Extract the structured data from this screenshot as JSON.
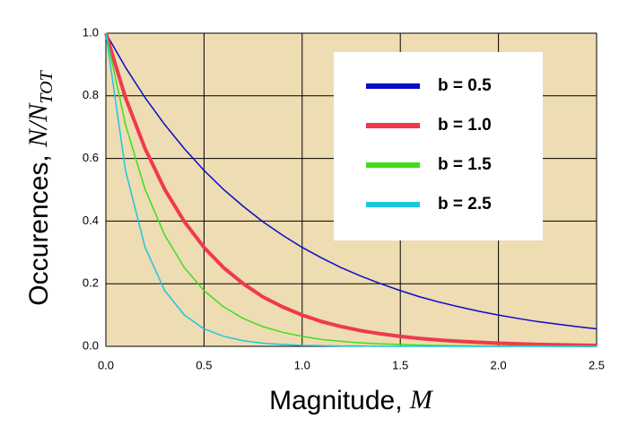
{
  "chart_data": {
    "type": "line",
    "xlabel": {
      "text": "Magnitude, ",
      "var": "M"
    },
    "ylabel": {
      "text": "Occurences, ",
      "var": "N/N",
      "sub": "TOT"
    },
    "x": [
      0,
      0.1,
      0.2,
      0.3,
      0.4,
      0.5,
      0.6,
      0.7,
      0.8,
      0.9,
      1.0,
      1.1,
      1.2,
      1.3,
      1.4,
      1.5,
      1.6,
      1.7,
      1.8,
      1.9,
      2.0,
      2.1,
      2.2,
      2.3,
      2.4,
      2.5
    ],
    "series": [
      {
        "name": "b = 0.5",
        "color": "#0b0bc8",
        "width": 1.5,
        "values": [
          1.0,
          0.891,
          0.794,
          0.708,
          0.631,
          0.562,
          0.501,
          0.447,
          0.398,
          0.355,
          0.316,
          0.282,
          0.251,
          0.224,
          0.2,
          0.178,
          0.158,
          0.141,
          0.126,
          0.112,
          0.1,
          0.089,
          0.079,
          0.071,
          0.063,
          0.056
        ]
      },
      {
        "name": "b = 1.0",
        "color": "#ef3a4c",
        "width": 4,
        "values": [
          1.0,
          0.794,
          0.631,
          0.501,
          0.398,
          0.316,
          0.251,
          0.2,
          0.158,
          0.126,
          0.1,
          0.079,
          0.063,
          0.05,
          0.04,
          0.032,
          0.025,
          0.02,
          0.016,
          0.013,
          0.01,
          0.008,
          0.006,
          0.005,
          0.004,
          0.003
        ]
      },
      {
        "name": "b = 1.5",
        "color": "#3fde1c",
        "width": 1.5,
        "values": [
          1.0,
          0.708,
          0.501,
          0.355,
          0.251,
          0.178,
          0.126,
          0.089,
          0.063,
          0.045,
          0.032,
          0.022,
          0.016,
          0.011,
          0.008,
          0.006,
          0.004,
          0.003,
          0.002,
          0.001,
          0.001,
          0.001,
          0.001,
          0,
          0,
          0
        ]
      },
      {
        "name": "b = 2.5",
        "color": "#1fc6e0",
        "width": 1.5,
        "values": [
          1.0,
          0.562,
          0.316,
          0.178,
          0.1,
          0.056,
          0.032,
          0.018,
          0.01,
          0.006,
          0.003,
          0.002,
          0.001,
          0.001,
          0,
          0,
          0,
          0,
          0,
          0,
          0,
          0,
          0,
          0,
          0,
          0
        ]
      }
    ],
    "xlim": [
      0,
      2.5
    ],
    "xticks": [
      {
        "value": 0,
        "label": "0.0"
      },
      0.5,
      {
        "value": 1,
        "label": "1.0"
      },
      1.5,
      {
        "value": 2,
        "label": "2.0"
      },
      2.5
    ],
    "ylim": [
      0,
      1
    ],
    "yticks": [
      {
        "value": 0,
        "label": "0.0"
      },
      0.2,
      0.4,
      0.6,
      0.8,
      {
        "value": 1,
        "label": "1.0"
      }
    ],
    "grid": true,
    "background": "#eedcb3",
    "legend": "upper right"
  }
}
